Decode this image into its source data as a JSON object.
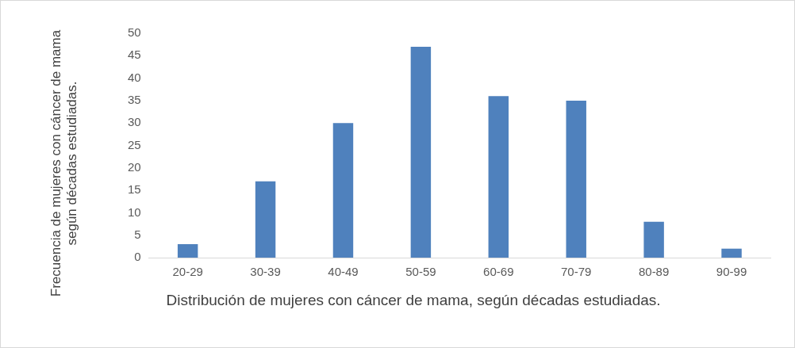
{
  "chart_data": {
    "type": "bar",
    "xlabel": "Distribución de mujeres con cáncer de mama, según décadas estudiadas.",
    "ylabel": "Frecuencia de mujeres con cáncer de mama según décadas estudiadas.",
    "categories": [
      "20-29",
      "30-39",
      "40-49",
      "50-59",
      "60-69",
      "70-79",
      "80-89",
      "90-99"
    ],
    "values": [
      3,
      17,
      30,
      47,
      36,
      35,
      8,
      2
    ],
    "color": "#4f81bd",
    "ylim": [
      0,
      50
    ],
    "yticks": [
      0,
      5,
      10,
      15,
      20,
      25,
      30,
      35,
      40,
      45,
      50
    ],
    "grid": false,
    "legend": false
  }
}
